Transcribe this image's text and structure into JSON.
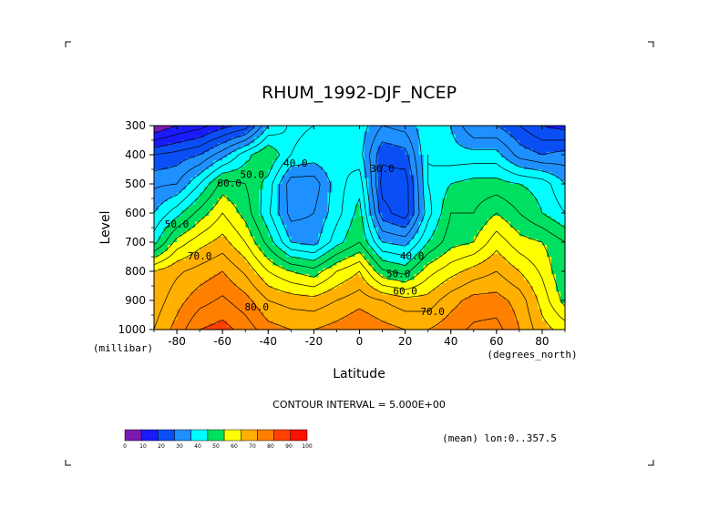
{
  "chart_data": {
    "type": "contour",
    "title": "RHUM_1992-DJF_NCEP",
    "xlabel": "Latitude",
    "ylabel": "Level",
    "x_units": "(degrees_north)",
    "y_units": "(millibar)",
    "xlim": [
      -90,
      90
    ],
    "ylim": [
      1000,
      300
    ],
    "x_ticks": [
      -80,
      -60,
      -40,
      -20,
      0,
      20,
      40,
      60,
      80
    ],
    "x_tick_labels": [
      "-80",
      "-60",
      "-40",
      "-20",
      "0",
      "20",
      "40",
      "60",
      "80"
    ],
    "y_ticks": [
      300,
      400,
      500,
      600,
      700,
      800,
      900,
      1000
    ],
    "y_tick_labels": [
      "300",
      "400",
      "500",
      "600",
      "700",
      "800",
      "900",
      "1000"
    ],
    "contour_interval_text": "CONTOUR INTERVAL = 5.000E+00",
    "subset_text": "(mean) lon:0..357.5",
    "levels": [
      0,
      10,
      20,
      30,
      40,
      50,
      60,
      70,
      80,
      90,
      100
    ],
    "level_labels": [
      "0",
      "10",
      "20",
      "30",
      "40",
      "50",
      "60",
      "70",
      "80",
      "90",
      "100"
    ],
    "colorbar_colors": [
      "#7a1ab0",
      "#1a1aff",
      "#0a4ff5",
      "#1e90ff",
      "#00ffff",
      "#00e060",
      "#ffff00",
      "#ffb000",
      "#ff8000",
      "#ff4000",
      "#ff1000"
    ],
    "contour_labels": [
      {
        "text": "40.0",
        "x": -28,
        "y": 440
      },
      {
        "text": "50.0",
        "x": -47,
        "y": 480
      },
      {
        "text": "30.0",
        "x": 10,
        "y": 460
      },
      {
        "text": "60.0",
        "x": -57,
        "y": 510
      },
      {
        "text": "50.0",
        "x": -80,
        "y": 650
      },
      {
        "text": "70.0",
        "x": -70,
        "y": 760
      },
      {
        "text": "40.0",
        "x": 23,
        "y": 760
      },
      {
        "text": "50.0",
        "x": 17,
        "y": 820
      },
      {
        "text": "60.0",
        "x": 20,
        "y": 880
      },
      {
        "text": "80.0",
        "x": -45,
        "y": 935
      },
      {
        "text": "70.0",
        "x": 32,
        "y": 950
      }
    ],
    "field": {
      "latitudes": [
        -90,
        -80,
        -70,
        -60,
        -50,
        -40,
        -30,
        -20,
        -10,
        0,
        10,
        20,
        30,
        40,
        50,
        60,
        70,
        80,
        90
      ],
      "levels": [
        300,
        400,
        500,
        600,
        700,
        800,
        900,
        1000
      ],
      "values": [
        [
          5,
          10,
          13,
          18,
          22,
          40,
          46,
          45,
          40,
          43,
          35,
          37,
          44,
          40,
          30,
          30,
          25,
          20,
          18
        ],
        [
          25,
          27,
          30,
          38,
          48,
          55,
          45,
          43,
          45,
          42,
          26,
          28,
          45,
          42,
          42,
          42,
          33,
          30,
          32
        ],
        [
          34,
          35,
          45,
          57,
          55,
          48,
          32,
          32,
          43,
          48,
          23,
          22,
          45,
          50,
          52,
          52,
          50,
          48,
          40
        ],
        [
          40,
          48,
          57,
          65,
          58,
          46,
          33,
          35,
          43,
          52,
          27,
          22,
          43,
          55,
          55,
          60,
          55,
          50,
          45
        ],
        [
          48,
          62,
          68,
          72,
          65,
          53,
          40,
          38,
          48,
          55,
          40,
          38,
          50,
          58,
          60,
          68,
          62,
          60,
          55
        ],
        [
          70,
          74,
          77,
          80,
          74,
          65,
          60,
          57,
          65,
          70,
          56,
          53,
          63,
          68,
          72,
          75,
          70,
          64,
          55
        ],
        [
          72,
          78,
          83,
          86,
          82,
          75,
          73,
          72,
          75,
          78,
          75,
          72,
          72,
          78,
          82,
          82,
          78,
          68,
          58
        ],
        [
          75,
          82,
          90,
          92,
          88,
          82,
          80,
          80,
          82,
          85,
          82,
          80,
          80,
          83,
          86,
          87,
          80,
          72,
          68
        ]
      ]
    }
  },
  "corner_marks": [
    "top-left",
    "top-right",
    "bottom-left",
    "bottom-right"
  ]
}
